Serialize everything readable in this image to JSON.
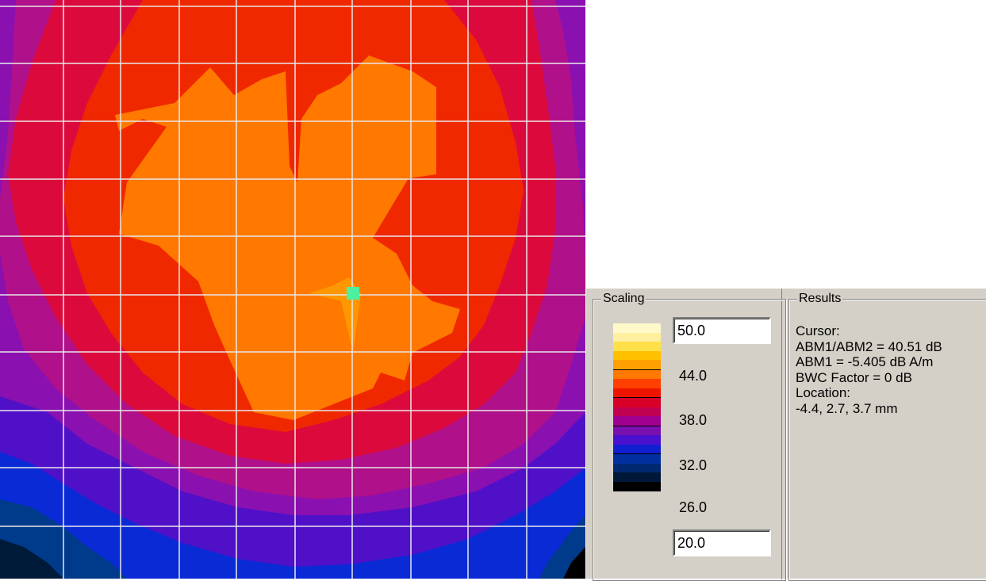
{
  "heatmap": {
    "colors": {
      "deep_black": "#000000",
      "dark_navy": "#001a3a",
      "navy": "#003a8a",
      "blue": "#0a2ad6",
      "indigo": "#5010c8",
      "purple": "#8a10b0",
      "magenta": "#b0108a",
      "crimson": "#dc0a3c",
      "red": "#f02800",
      "orange": "#ff7800",
      "amber": "#ff9800",
      "cursor": "#4ef0a0",
      "grid": "#e8e8e8"
    },
    "grid_divisions": 10
  },
  "scaling": {
    "title": "Scaling",
    "max_value": "50.0",
    "min_value": "20.0",
    "ticks": [
      "44.0",
      "38.0",
      "32.0",
      "26.0"
    ],
    "swatch_colors": [
      "#fff8c8",
      "#fff0a0",
      "#ffe048",
      "#ffc000",
      "#ffa000",
      "#ff7800",
      "#ff4000",
      "#ee1400",
      "#d80028",
      "#c00050",
      "#a00090",
      "#7a10b0",
      "#4a10d0",
      "#1020d0",
      "#0030a0",
      "#002870",
      "#001838",
      "#000000"
    ]
  },
  "results": {
    "title": "Results",
    "lines": [
      "Cursor:",
      "ABM1/ABM2 = 40.51 dB",
      "ABM1 = -5.405 dB A/m",
      "BWC Factor = 0 dB",
      "Location:",
      "-4.4, 2.7, 3.7 mm"
    ]
  }
}
